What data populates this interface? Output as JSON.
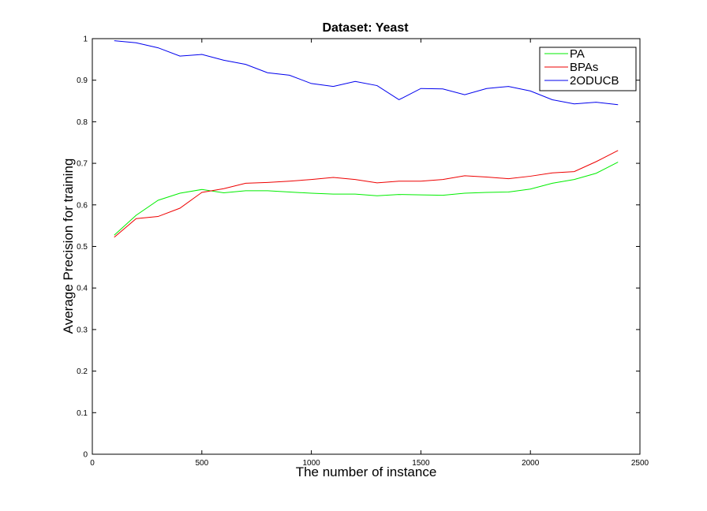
{
  "chart_data": {
    "type": "line",
    "title": "Dataset: Yeast",
    "xlabel": "The number of instance",
    "ylabel": "Average Precision for training",
    "xlim": [
      0,
      2500
    ],
    "ylim": [
      0,
      1
    ],
    "xticks": [
      0,
      500,
      1000,
      1500,
      2000,
      2500
    ],
    "xtick_labels": [
      "0",
      "500",
      "1000",
      "1500",
      "2000",
      "2500"
    ],
    "yticks": [
      0,
      0.1,
      0.2,
      0.3,
      0.4,
      0.5,
      0.6,
      0.7,
      0.8,
      0.9,
      1
    ],
    "ytick_labels": [
      "0",
      "0.1",
      "0.2",
      "0.3",
      "0.4",
      "0.5",
      "0.6",
      "0.7",
      "0.8",
      "0.9",
      "1"
    ],
    "grid": false,
    "legend_position": "top-right",
    "x": [
      100,
      200,
      300,
      400,
      500,
      600,
      700,
      800,
      900,
      1000,
      1100,
      1200,
      1300,
      1400,
      1500,
      1600,
      1700,
      1800,
      1900,
      2000,
      2100,
      2200,
      2300,
      2400
    ],
    "series": [
      {
        "name": "PA",
        "color": "#00ee00",
        "values": [
          0.527,
          0.575,
          0.611,
          0.628,
          0.637,
          0.629,
          0.634,
          0.634,
          0.631,
          0.628,
          0.626,
          0.626,
          0.622,
          0.625,
          0.624,
          0.623,
          0.628,
          0.63,
          0.631,
          0.638,
          0.652,
          0.661,
          0.676,
          0.703
        ]
      },
      {
        "name": "BPAs",
        "color": "#ee0000",
        "values": [
          0.522,
          0.567,
          0.572,
          0.592,
          0.63,
          0.639,
          0.652,
          0.654,
          0.657,
          0.661,
          0.666,
          0.661,
          0.653,
          0.657,
          0.657,
          0.661,
          0.67,
          0.667,
          0.663,
          0.669,
          0.677,
          0.68,
          0.704,
          0.731
        ]
      },
      {
        "name": "2ODUCB",
        "color": "#0000ee",
        "values": [
          0.995,
          0.99,
          0.978,
          0.958,
          0.962,
          0.948,
          0.938,
          0.918,
          0.912,
          0.892,
          0.885,
          0.897,
          0.887,
          0.853,
          0.88,
          0.879,
          0.865,
          0.88,
          0.885,
          0.874,
          0.853,
          0.843,
          0.847,
          0.841
        ]
      }
    ]
  }
}
